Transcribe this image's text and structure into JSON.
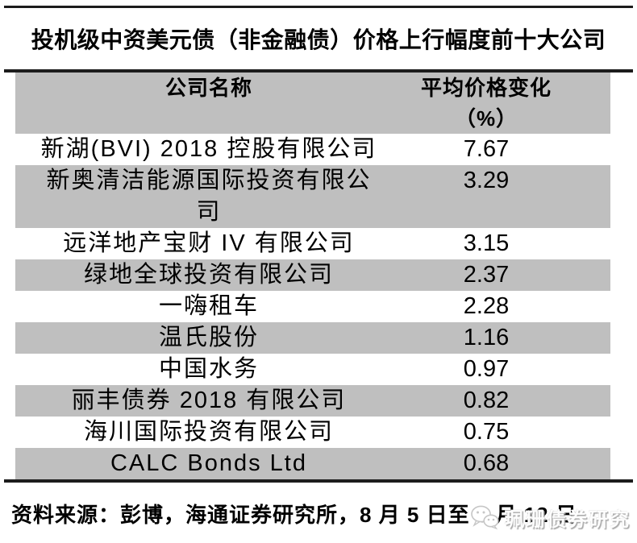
{
  "title": "投机级中资美元债（非金融债）价格上行幅度前十大公司",
  "table": {
    "header": {
      "company": "公司名称",
      "change": "平均价格变化（%）"
    },
    "rows": [
      {
        "company": "新湖(BVI) 2018 控股有限公司",
        "change": "7.67"
      },
      {
        "company": "新奥清洁能源国际投资有限公\n司",
        "change": "3.29"
      },
      {
        "company": "远洋地产宝财 IV 有限公司",
        "change": "3.15"
      },
      {
        "company": "绿地全球投资有限公司",
        "change": "2.37"
      },
      {
        "company": "一嗨租车",
        "change": "2.28"
      },
      {
        "company": "温氏股份",
        "change": "1.16"
      },
      {
        "company": "中国水务",
        "change": "0.97"
      },
      {
        "company": "丽丰债券 2018 有限公司",
        "change": "0.82"
      },
      {
        "company": "海川国际投资有限公司",
        "change": "0.75"
      },
      {
        "company": "CALC Bonds Ltd",
        "change": "0.68"
      }
    ]
  },
  "source_note": "资料来源：彭博，海通证券研究所，8 月 5 日至 8 月 12 日",
  "watermark": {
    "icon": "wechat-icon",
    "label": "珮珊债券研究"
  },
  "colors": {
    "header_bg": "#bfbfbf",
    "alt_row_bg": "#bfbfbf",
    "rule": "#1c1c1c",
    "text": "#000000",
    "watermark": "#c6c6c6"
  },
  "chart_data": {
    "type": "table",
    "title": "投机级中资美元债（非金融债）价格上行幅度前十大公司",
    "columns": [
      "公司名称",
      "平均价格变化（%）"
    ],
    "rows": [
      [
        "新湖(BVI) 2018 控股有限公司",
        7.67
      ],
      [
        "新奥清洁能源国际投资有限公司",
        3.29
      ],
      [
        "远洋地产宝财 IV 有限公司",
        3.15
      ],
      [
        "绿地全球投资有限公司",
        2.37
      ],
      [
        "一嗨租车",
        2.28
      ],
      [
        "温氏股份",
        1.16
      ],
      [
        "中国水务",
        0.97
      ],
      [
        "丽丰债券 2018 有限公司",
        0.82
      ],
      [
        "海川国际投资有限公司",
        0.75
      ],
      [
        "CALC Bonds Ltd",
        0.68
      ]
    ],
    "source": "资料来源：彭博，海通证券研究所，8 月 5 日至 8 月 12 日"
  }
}
